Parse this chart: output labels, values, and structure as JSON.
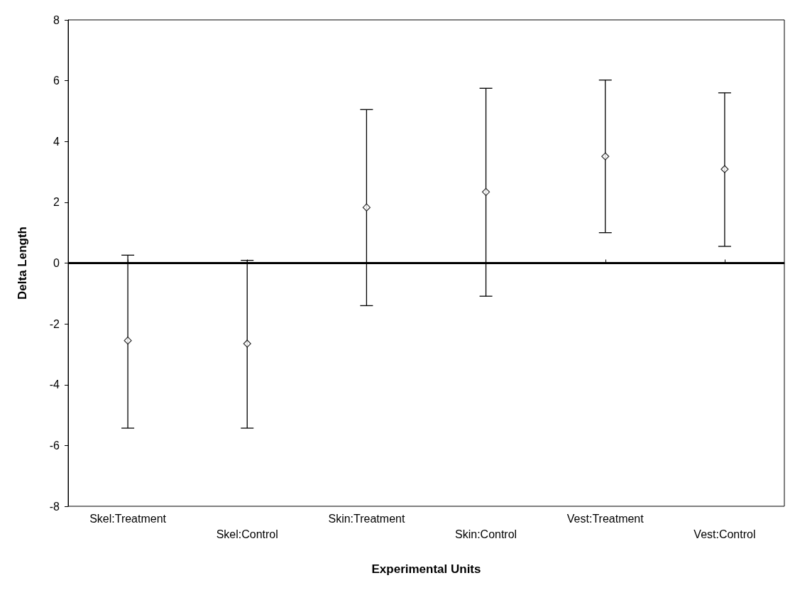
{
  "chart_data": {
    "type": "scatter",
    "xlabel": "Experimental Units",
    "ylabel": "Delta Length",
    "categories": [
      "Skel:Treatment",
      "Skel:Control",
      "Skin:Treatment",
      "Skin:Control",
      "Vest:Treatment",
      "Vest:Control"
    ],
    "values": [
      -2.55,
      -2.65,
      1.83,
      2.34,
      3.51,
      3.09
    ],
    "errors": [
      [
        -5.43,
        0.26
      ],
      [
        -5.43,
        0.09
      ],
      [
        -1.4,
        5.05
      ],
      [
        -1.09,
        5.75
      ],
      [
        1.0,
        6.02
      ],
      [
        0.55,
        5.6
      ]
    ],
    "color": "#000000",
    "marker": "diamond",
    "ylim": [
      -8,
      8
    ],
    "yticks": [
      -8,
      -6,
      -4,
      -2,
      0,
      2,
      4,
      6,
      8
    ],
    "grid": false,
    "ref_lines": [
      {
        "axis": "y",
        "value": 0,
        "color": "#000000",
        "line_style": "solid"
      }
    ]
  }
}
